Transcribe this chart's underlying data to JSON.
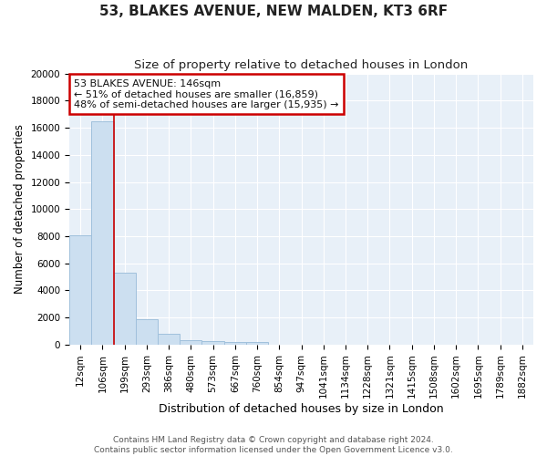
{
  "title1": "53, BLAKES AVENUE, NEW MALDEN, KT3 6RF",
  "title2": "Size of property relative to detached houses in London",
  "xlabel": "Distribution of detached houses by size in London",
  "ylabel": "Number of detached properties",
  "bar_labels": [
    "12sqm",
    "106sqm",
    "199sqm",
    "293sqm",
    "386sqm",
    "480sqm",
    "573sqm",
    "667sqm",
    "760sqm",
    "854sqm",
    "947sqm",
    "1041sqm",
    "1134sqm",
    "1228sqm",
    "1321sqm",
    "1415sqm",
    "1508sqm",
    "1602sqm",
    "1695sqm",
    "1789sqm",
    "1882sqm"
  ],
  "bar_values": [
    8100,
    16500,
    5300,
    1850,
    800,
    350,
    260,
    220,
    200,
    0,
    0,
    0,
    0,
    0,
    0,
    0,
    0,
    0,
    0,
    0,
    0
  ],
  "bar_color": "#ccdff0",
  "bar_edge_color": "#a0c0dc",
  "red_line_x": 1.5,
  "annotation_title": "53 BLAKES AVENUE: 146sqm",
  "annotation_line1": "← 51% of detached houses are smaller (16,859)",
  "annotation_line2": "48% of semi-detached houses are larger (15,935) →",
  "annotation_box_color": "#ffffff",
  "annotation_border_color": "#cc0000",
  "ylim": [
    0,
    20000
  ],
  "yticks": [
    0,
    2000,
    4000,
    6000,
    8000,
    10000,
    12000,
    14000,
    16000,
    18000,
    20000
  ],
  "background_color": "#e8f0f8",
  "grid_color": "#ffffff",
  "footer1": "Contains HM Land Registry data © Crown copyright and database right 2024.",
  "footer2": "Contains public sector information licensed under the Open Government Licence v3.0.",
  "title_fontsize": 11,
  "subtitle_fontsize": 9.5,
  "ylabel_fontsize": 8.5,
  "xlabel_fontsize": 9,
  "tick_fontsize": 7.5,
  "footer_fontsize": 6.5
}
